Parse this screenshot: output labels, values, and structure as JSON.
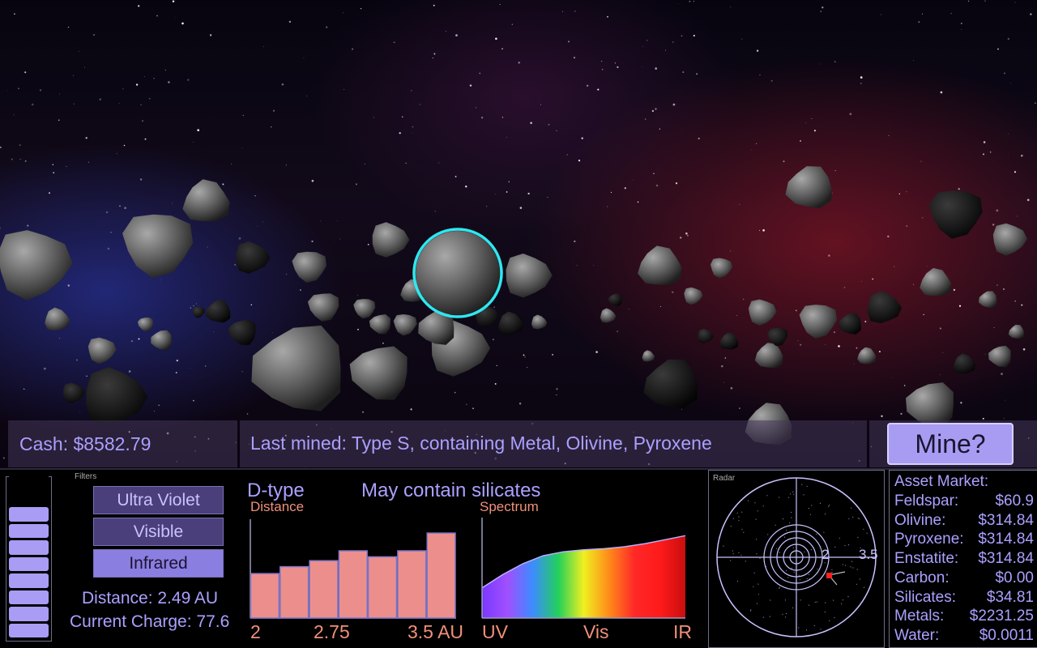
{
  "hud": {
    "cash": "Cash: $8582.79",
    "last_mined": "Last mined: Type S, containing Metal, Olivine, Pyroxene",
    "mine_button": "Mine?"
  },
  "filters": {
    "title": "Filters",
    "buttons": [
      {
        "label": "Ultra Violet",
        "active": false
      },
      {
        "label": "Visible",
        "active": false
      },
      {
        "label": "Infrared",
        "active": true
      }
    ],
    "distance": "Distance: 2.49 AU",
    "charge": "Current Charge: 77.6"
  },
  "charge_meter": {
    "segments": 10,
    "filled": 8
  },
  "analysis": {
    "type": "D-type",
    "composition": "May contain silicates"
  },
  "chart_data": [
    {
      "type": "bar",
      "title": "Distance",
      "values": [
        0.45,
        0.52,
        0.58,
        0.68,
        0.62,
        0.68,
        0.86
      ],
      "ylim": [
        0,
        1
      ],
      "tick_labels": [
        "2",
        "2.75",
        "3.5 AU"
      ],
      "color": "#ec8f8c"
    },
    {
      "type": "area",
      "title": "Spectrum",
      "x": [
        0,
        0.1,
        0.2,
        0.3,
        0.4,
        0.5,
        0.6,
        0.7,
        0.8,
        0.9,
        1.0
      ],
      "values": [
        0.3,
        0.43,
        0.54,
        0.62,
        0.66,
        0.68,
        0.69,
        0.71,
        0.74,
        0.78,
        0.82
      ],
      "ylim": [
        0,
        1
      ],
      "tick_labels": [
        "UV",
        "Vis",
        "IR"
      ],
      "gradient": [
        "#7a38ff",
        "#a050ff",
        "#3c8cff",
        "#22d05a",
        "#f0f020",
        "#ff8a1a",
        "#ff2828",
        "#ff1a1a",
        "#c80e0e"
      ]
    }
  ],
  "radar": {
    "title": "Radar",
    "labels": [
      "2",
      "3.5"
    ],
    "blip_color": "#ff2020"
  },
  "market": {
    "title": "Asset Market:",
    "items": [
      {
        "name": "Feldspar:",
        "price": "$60.9"
      },
      {
        "name": "Olivine:",
        "price": "$314.84"
      },
      {
        "name": "Pyroxene:",
        "price": "$314.84"
      },
      {
        "name": "Enstatite:",
        "price": "$314.84"
      },
      {
        "name": "Carbon:",
        "price": "$0.00"
      },
      {
        "name": "Silicates:",
        "price": "$34.81"
      },
      {
        "name": "Metals:",
        "price": "$2231.25"
      },
      {
        "name": "Water:",
        "price": "$0.0011"
      }
    ]
  }
}
